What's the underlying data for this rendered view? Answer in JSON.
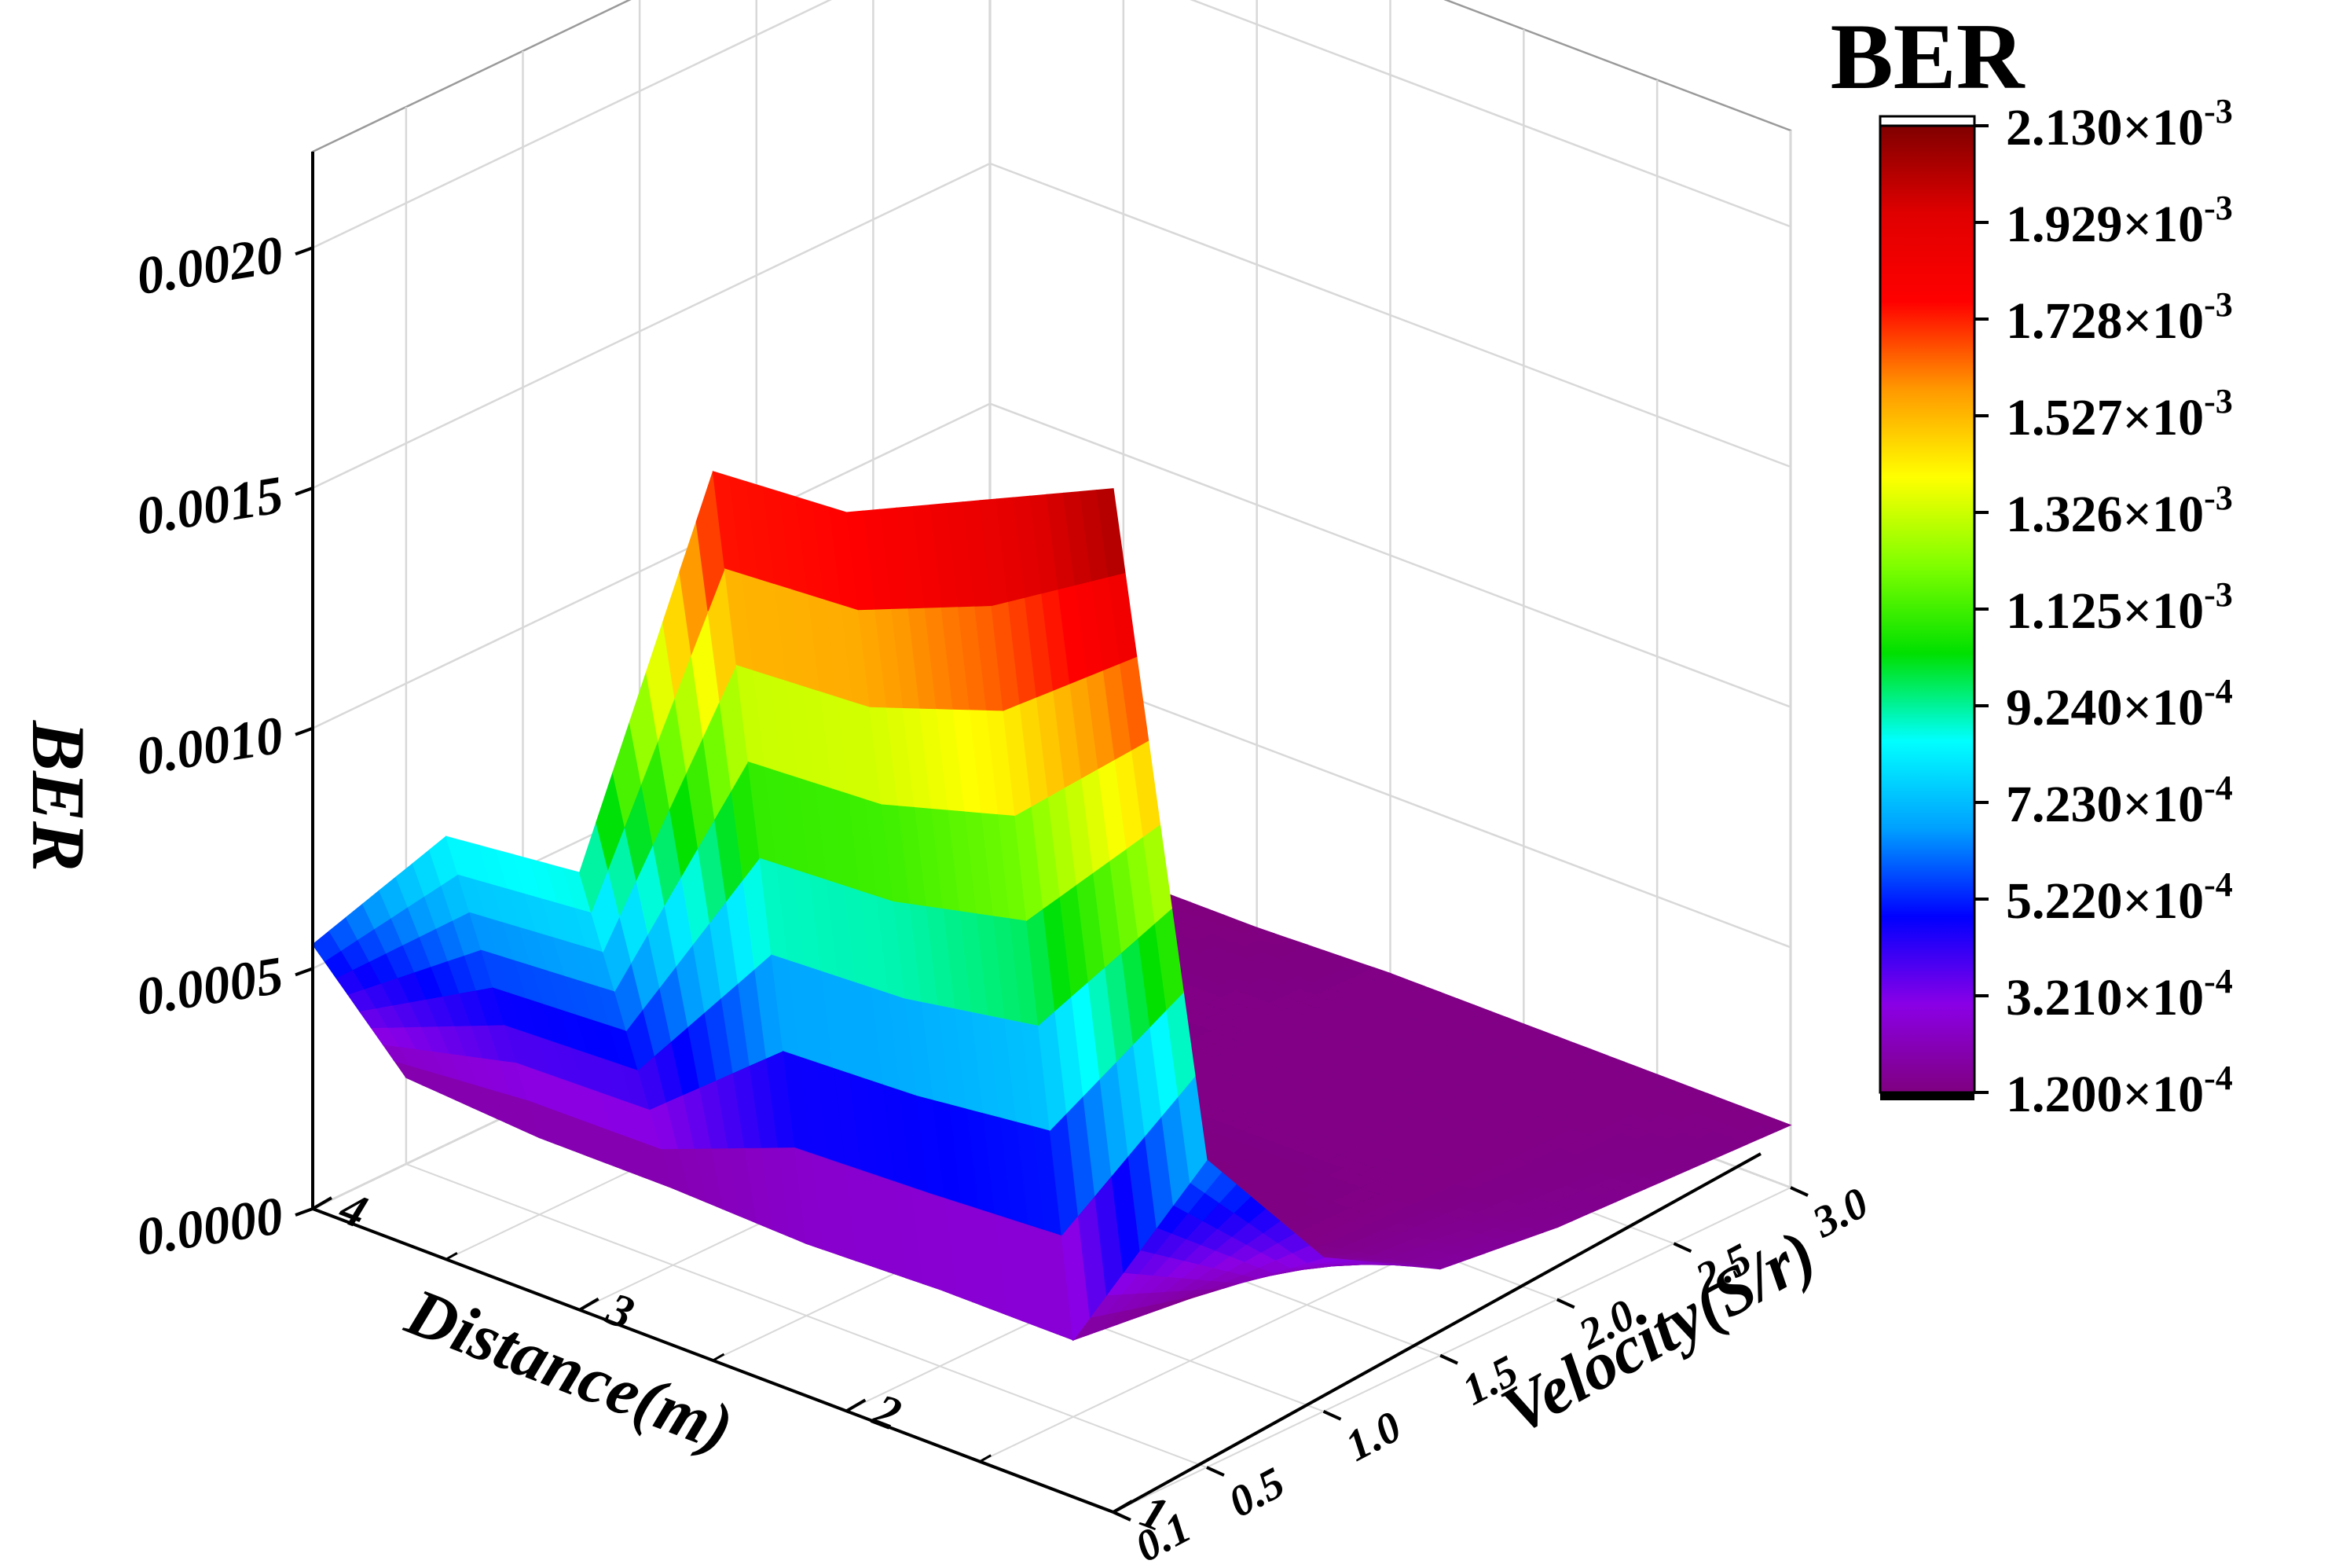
{
  "chart_data": {
    "type": "surface3d",
    "title": "",
    "zlabel": "BER",
    "xlabel": "Distance(m)",
    "ylabel": "Velocity(S/r)",
    "x": [
      4,
      3.5,
      3,
      2.5,
      2,
      1.5,
      1
    ],
    "y": [
      0.1,
      0.5,
      1.0,
      1.5,
      2.0,
      2.5,
      3.0
    ],
    "z": [
      [
        0.00055,
        0.00088,
        0.00091,
        0.00185,
        0.00187,
        0.002,
        0.00213
      ],
      [
        0.00018,
        0.00016,
        0.00016,
        0.00015,
        0.00016,
        0.00016,
        0.00064
      ],
      [
        0.00014,
        0.00013,
        0.00012,
        0.00012,
        0.00012,
        0.00013,
        0.00032
      ],
      [
        0.00013,
        0.00012,
        0.00012,
        0.00012,
        0.00012,
        0.00013,
        0.00018
      ],
      [
        0.00012,
        0.00012,
        0.00012,
        0.00013,
        0.00013,
        0.00013,
        0.00015
      ],
      [
        0.00012,
        0.00012,
        0.00013,
        0.00013,
        0.00013,
        0.00013,
        0.00014
      ],
      [
        0.00012,
        0.00012,
        0.00012,
        0.00013,
        0.00013,
        0.00013,
        0.00013
      ]
    ],
    "z_ticks": [
      "0.0000",
      "0.0005",
      "0.0010",
      "0.0015",
      "0.0020"
    ],
    "z_tick_values": [
      0,
      0.0005,
      0.001,
      0.0015,
      0.002
    ],
    "zlim": [
      0,
      0.0022
    ],
    "x_ticks": [
      "4",
      "3",
      "2",
      "1"
    ],
    "x_tick_values": [
      4,
      3,
      2,
      1
    ],
    "xlim": [
      1,
      4
    ],
    "y_ticks": [
      "0.1",
      "0.5",
      "1.0",
      "1.5",
      "2.0",
      "2.5",
      "3.0"
    ],
    "y_tick_values": [
      0.1,
      0.5,
      1.0,
      1.5,
      2.0,
      2.5,
      3.0
    ],
    "ylim": [
      0.1,
      3.0
    ],
    "grid": true,
    "colorbar": {
      "title": "BER",
      "labels": [
        {
          "mantissa": "2.130",
          "exp": "-3"
        },
        {
          "mantissa": "1.929",
          "exp": "-3"
        },
        {
          "mantissa": "1.728",
          "exp": "-3"
        },
        {
          "mantissa": "1.527",
          "exp": "-3"
        },
        {
          "mantissa": "1.326",
          "exp": "-3"
        },
        {
          "mantissa": "1.125",
          "exp": "-3"
        },
        {
          "mantissa": "9.240",
          "exp": "-4"
        },
        {
          "mantissa": "7.230",
          "exp": "-4"
        },
        {
          "mantissa": "5.220",
          "exp": "-4"
        },
        {
          "mantissa": "3.210",
          "exp": "-4"
        },
        {
          "mantissa": "1.200",
          "exp": "-4"
        }
      ],
      "min": 0.00012,
      "max": 0.00213,
      "colors": [
        "#800080",
        "#8a00e6",
        "#0000ff",
        "#00a0ff",
        "#00ffff",
        "#00e000",
        "#80ff00",
        "#ffff00",
        "#ff9900",
        "#ff0000",
        "#e00000",
        "#800000"
      ],
      "placement": "right"
    }
  }
}
